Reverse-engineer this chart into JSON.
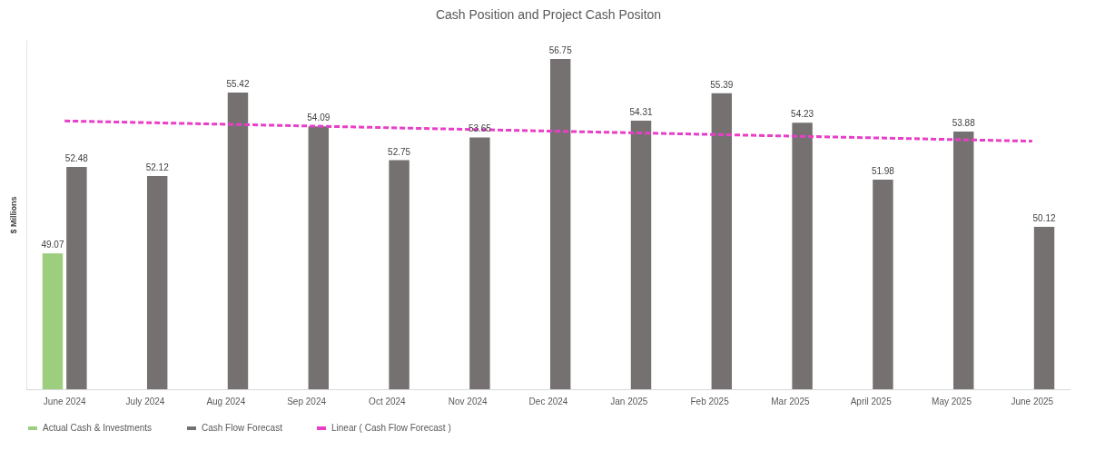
{
  "chart_data": {
    "type": "bar",
    "title": "Cash Position and Project Cash Positon",
    "ylabel": "$ Millions",
    "categories": [
      "June 2024",
      "July 2024",
      "Aug 2024",
      "Sep 2024",
      "Oct 2024",
      "Nov 2024",
      "Dec 2024",
      "Jan 2025",
      "Feb 2025",
      "Mar 2025",
      "April 2025",
      "May 2025",
      "June 2025"
    ],
    "series": [
      {
        "name": "Actual Cash & Investments",
        "color": "#9dce7e",
        "values": [
          49.07,
          null,
          null,
          null,
          null,
          null,
          null,
          null,
          null,
          null,
          null,
          null,
          null
        ],
        "value_labels": [
          "49.07",
          null,
          null,
          null,
          null,
          null,
          null,
          null,
          null,
          null,
          null,
          null,
          null
        ]
      },
      {
        "name": "Cash Flow Forecast",
        "color": "#767171",
        "values": [
          52.48,
          52.12,
          55.42,
          54.09,
          52.75,
          53.65,
          56.75,
          54.31,
          55.39,
          54.23,
          51.98,
          53.88,
          50.12
        ],
        "value_labels": [
          "52.48",
          "52.12",
          "55.42",
          "54.09",
          "52.75",
          "53.65",
          "56.75",
          "54.31",
          "55.39",
          "54.23",
          "51.98",
          "53.88",
          "50.12"
        ]
      },
      {
        "name": "Linear ( Cash Flow Forecast )",
        "type": "line",
        "color": "#e83ec8",
        "line_style": "dashed",
        "x": [
          "June 2024",
          "June 2025"
        ],
        "values": [
          54.3,
          53.5
        ]
      }
    ],
    "ylim": [
      43.7,
      57.5
    ],
    "tick_labels": "x",
    "grid": false,
    "legend": "bottom"
  }
}
